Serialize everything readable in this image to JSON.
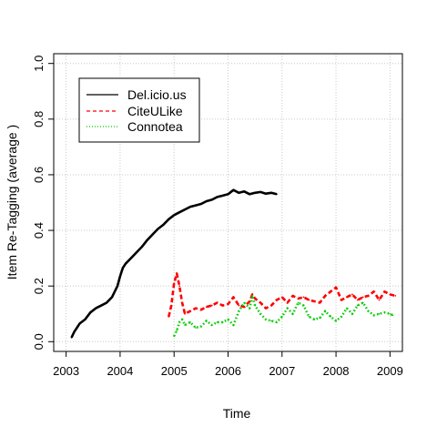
{
  "chart_data": {
    "type": "line",
    "title": "",
    "xlabel": "Time",
    "ylabel": "Item Re-Tagging (average    )",
    "xlim": [
      2002.77,
      2009.23
    ],
    "ylim": [
      -0.035,
      1.035
    ],
    "x_ticks": [
      2003,
      2004,
      2005,
      2006,
      2007,
      2008,
      2009
    ],
    "x_tick_labels": [
      "2003",
      "2004",
      "2005",
      "2006",
      "2007",
      "2008",
      "2009"
    ],
    "y_ticks": [
      0.0,
      0.2,
      0.4,
      0.6,
      0.8,
      1.0
    ],
    "y_tick_labels": [
      "0.0",
      "0.2",
      "0.4",
      "0.6",
      "0.8",
      "1.0"
    ],
    "grid": true,
    "legend_position": "top-left",
    "series": [
      {
        "name": "Del.icio.us",
        "color": "#000000",
        "dash": "solid",
        "x": [
          2003.1,
          2003.15,
          2003.25,
          2003.35,
          2003.45,
          2003.55,
          2003.65,
          2003.75,
          2003.85,
          2003.95,
          2004.0,
          2004.05,
          2004.1,
          2004.2,
          2004.3,
          2004.4,
          2004.5,
          2004.6,
          2004.7,
          2004.8,
          2004.9,
          2005.0,
          2005.1,
          2005.2,
          2005.3,
          2005.4,
          2005.5,
          2005.6,
          2005.7,
          2005.8,
          2005.9,
          2006.0,
          2006.1,
          2006.2,
          2006.3,
          2006.4,
          2006.5,
          2006.6,
          2006.7,
          2006.8,
          2006.9
        ],
        "y": [
          0.015,
          0.035,
          0.065,
          0.08,
          0.105,
          0.12,
          0.13,
          0.14,
          0.16,
          0.2,
          0.235,
          0.265,
          0.28,
          0.3,
          0.32,
          0.34,
          0.365,
          0.385,
          0.405,
          0.42,
          0.44,
          0.455,
          0.465,
          0.475,
          0.485,
          0.49,
          0.495,
          0.505,
          0.51,
          0.52,
          0.525,
          0.53,
          0.545,
          0.535,
          0.54,
          0.53,
          0.535,
          0.538,
          0.532,
          0.535,
          0.53
        ]
      },
      {
        "name": "CiteULike",
        "color": "#ff0000",
        "dash": "dashed",
        "x": [
          2004.9,
          2004.95,
          2005.0,
          2005.05,
          2005.1,
          2005.15,
          2005.2,
          2005.3,
          2005.4,
          2005.5,
          2005.6,
          2005.7,
          2005.8,
          2005.9,
          2006.0,
          2006.1,
          2006.2,
          2006.3,
          2006.4,
          2006.45,
          2006.5,
          2006.6,
          2006.7,
          2006.8,
          2006.9,
          2007.0,
          2007.1,
          2007.2,
          2007.3,
          2007.4,
          2007.5,
          2007.6,
          2007.7,
          2007.8,
          2007.9,
          2008.0,
          2008.1,
          2008.2,
          2008.3,
          2008.4,
          2008.5,
          2008.6,
          2008.7,
          2008.8,
          2008.9,
          2009.0,
          2009.1
        ],
        "y": [
          0.09,
          0.13,
          0.21,
          0.245,
          0.2,
          0.14,
          0.1,
          0.11,
          0.12,
          0.115,
          0.125,
          0.13,
          0.14,
          0.13,
          0.135,
          0.16,
          0.13,
          0.125,
          0.145,
          0.17,
          0.155,
          0.14,
          0.12,
          0.13,
          0.15,
          0.16,
          0.14,
          0.165,
          0.155,
          0.16,
          0.15,
          0.145,
          0.14,
          0.165,
          0.18,
          0.195,
          0.15,
          0.16,
          0.17,
          0.15,
          0.16,
          0.165,
          0.18,
          0.15,
          0.18,
          0.17,
          0.165
        ]
      },
      {
        "name": "Connotea",
        "color": "#00cc00",
        "dash": "dotted",
        "x": [
          2005.0,
          2005.05,
          2005.1,
          2005.15,
          2005.2,
          2005.3,
          2005.4,
          2005.5,
          2005.6,
          2005.7,
          2005.8,
          2005.9,
          2006.0,
          2006.1,
          2006.2,
          2006.3,
          2006.4,
          2006.45,
          2006.5,
          2006.6,
          2006.7,
          2006.8,
          2006.9,
          2007.0,
          2007.1,
          2007.2,
          2007.3,
          2007.4,
          2007.5,
          2007.6,
          2007.7,
          2007.8,
          2007.9,
          2008.0,
          2008.1,
          2008.2,
          2008.3,
          2008.4,
          2008.5,
          2008.6,
          2008.7,
          2008.8,
          2008.9,
          2009.0,
          2009.05
        ],
        "y": [
          0.02,
          0.04,
          0.07,
          0.08,
          0.06,
          0.07,
          0.05,
          0.055,
          0.075,
          0.06,
          0.07,
          0.07,
          0.08,
          0.06,
          0.11,
          0.14,
          0.12,
          0.165,
          0.13,
          0.1,
          0.08,
          0.075,
          0.07,
          0.09,
          0.12,
          0.1,
          0.14,
          0.13,
          0.09,
          0.08,
          0.085,
          0.11,
          0.09,
          0.075,
          0.09,
          0.12,
          0.1,
          0.13,
          0.14,
          0.11,
          0.095,
          0.1,
          0.105,
          0.1,
          0.095
        ]
      }
    ]
  }
}
